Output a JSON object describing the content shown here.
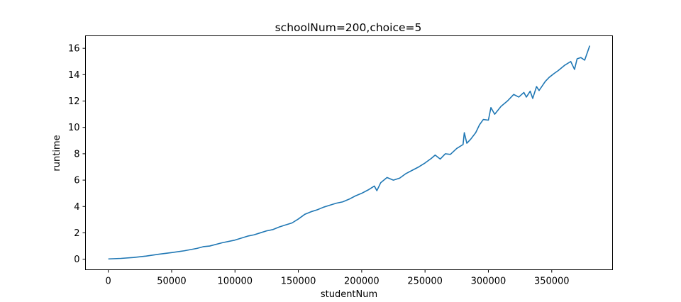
{
  "chart_data": {
    "type": "line",
    "title": "schoolNum=200,choice=5",
    "xlabel": "studentNum",
    "ylabel": "runtime",
    "xlim": [
      -18000,
      398000
    ],
    "ylim": [
      -0.8,
      16.95
    ],
    "xticks": [
      0,
      50000,
      100000,
      150000,
      200000,
      250000,
      300000,
      350000
    ],
    "xtick_labels": [
      "0",
      "50000",
      "100000",
      "150000",
      "200000",
      "250000",
      "300000",
      "350000"
    ],
    "yticks": [
      0,
      2,
      4,
      6,
      8,
      10,
      12,
      14,
      16
    ],
    "ytick_labels": [
      "0",
      "2",
      "4",
      "6",
      "8",
      "10",
      "12",
      "14",
      "16"
    ],
    "grid": false,
    "legend": "none",
    "color": "#1f77b4",
    "series": [
      {
        "x": [
          0,
          10000,
          20000,
          30000,
          40000,
          50000,
          60000,
          70000,
          75000,
          80000,
          90000,
          100000,
          110000,
          115000,
          120000,
          125000,
          130000,
          135000,
          140000,
          145000,
          150000,
          155000,
          160000,
          165000,
          170000,
          175000,
          180000,
          185000,
          190000,
          195000,
          200000,
          205000,
          210000,
          212000,
          215000,
          220000,
          225000,
          230000,
          235000,
          240000,
          245000,
          250000,
          255000,
          258000,
          262000,
          266000,
          270000,
          275000,
          280000,
          281000,
          283000,
          286000,
          290000,
          293000,
          296000,
          300000,
          302000,
          305000,
          310000,
          315000,
          320000,
          324000,
          328000,
          330000,
          333000,
          335000,
          338000,
          340000,
          345000,
          348000,
          352000,
          355000,
          360000,
          365000,
          368000,
          370000,
          373000,
          376000,
          380000
        ],
        "y": [
          0.02,
          0.06,
          0.13,
          0.24,
          0.38,
          0.5,
          0.64,
          0.82,
          0.95,
          1.0,
          1.25,
          1.45,
          1.75,
          1.85,
          2.0,
          2.15,
          2.25,
          2.45,
          2.6,
          2.75,
          3.05,
          3.4,
          3.6,
          3.75,
          3.95,
          4.1,
          4.25,
          4.35,
          4.55,
          4.8,
          5.0,
          5.25,
          5.55,
          5.2,
          5.8,
          6.2,
          6.0,
          6.15,
          6.5,
          6.75,
          7.0,
          7.3,
          7.65,
          7.9,
          7.6,
          8.0,
          7.95,
          8.4,
          8.7,
          9.6,
          8.8,
          9.1,
          9.6,
          10.2,
          10.6,
          10.55,
          11.5,
          11.0,
          11.6,
          12.0,
          12.5,
          12.3,
          12.65,
          12.3,
          12.75,
          12.2,
          13.1,
          12.8,
          13.5,
          13.8,
          14.1,
          14.3,
          14.7,
          15.0,
          14.4,
          15.2,
          15.3,
          15.1,
          16.2
        ]
      }
    ]
  }
}
